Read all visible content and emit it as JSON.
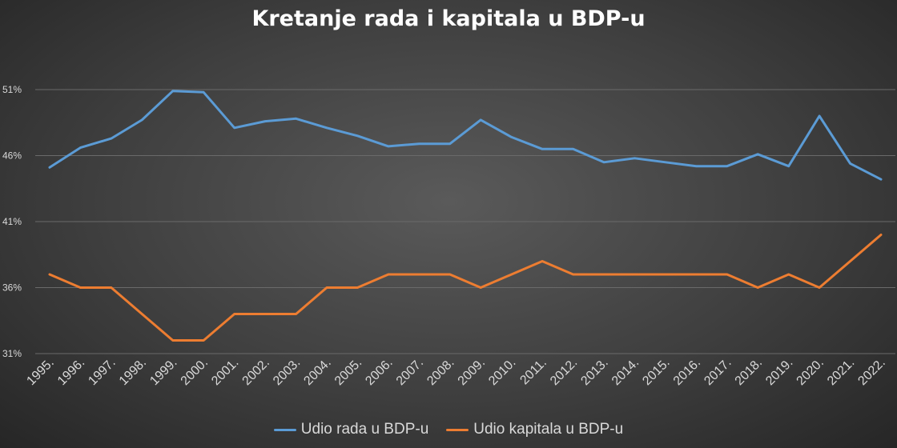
{
  "chart_data": {
    "type": "line",
    "title": "Kretanje rada i kapitala u BDP-u",
    "xlabel": "",
    "ylabel": "",
    "categories": [
      "1995.",
      "1996.",
      "1997.",
      "1998.",
      "1999.",
      "2000.",
      "2001.",
      "2002.",
      "2003.",
      "2004.",
      "2005.",
      "2006.",
      "2007.",
      "2008.",
      "2009.",
      "2010.",
      "2011.",
      "2012.",
      "2013.",
      "2014.",
      "2015.",
      "2016.",
      "2017.",
      "2018.",
      "2019.",
      "2020.",
      "2021.",
      "2022."
    ],
    "ylim": [
      31,
      51
    ],
    "yticks": [
      31,
      36,
      41,
      46,
      51
    ],
    "ytick_suffix": "%",
    "grid": true,
    "legend_position": "bottom",
    "series": [
      {
        "name": "Udio rada u BDP-u",
        "color": "#5b9bd5",
        "values": [
          45.1,
          46.6,
          47.3,
          48.7,
          50.9,
          50.8,
          48.1,
          48.6,
          48.8,
          48.1,
          47.5,
          46.7,
          46.9,
          46.9,
          48.7,
          47.4,
          46.5,
          46.5,
          45.5,
          45.8,
          45.5,
          45.2,
          45.2,
          46.1,
          45.2,
          49.0,
          45.4,
          44.2
        ]
      },
      {
        "name": "Udio kapitala u BDP-u",
        "color": "#ed7d31",
        "values": [
          37.0,
          36.0,
          36.0,
          34.0,
          32.0,
          32.0,
          34.0,
          34.0,
          34.0,
          36.0,
          36.0,
          37.0,
          37.0,
          37.0,
          36.0,
          37.0,
          38.0,
          37.0,
          37.0,
          37.0,
          37.0,
          37.0,
          37.0,
          36.0,
          37.0,
          36.0,
          38.0,
          40.0
        ]
      }
    ]
  }
}
